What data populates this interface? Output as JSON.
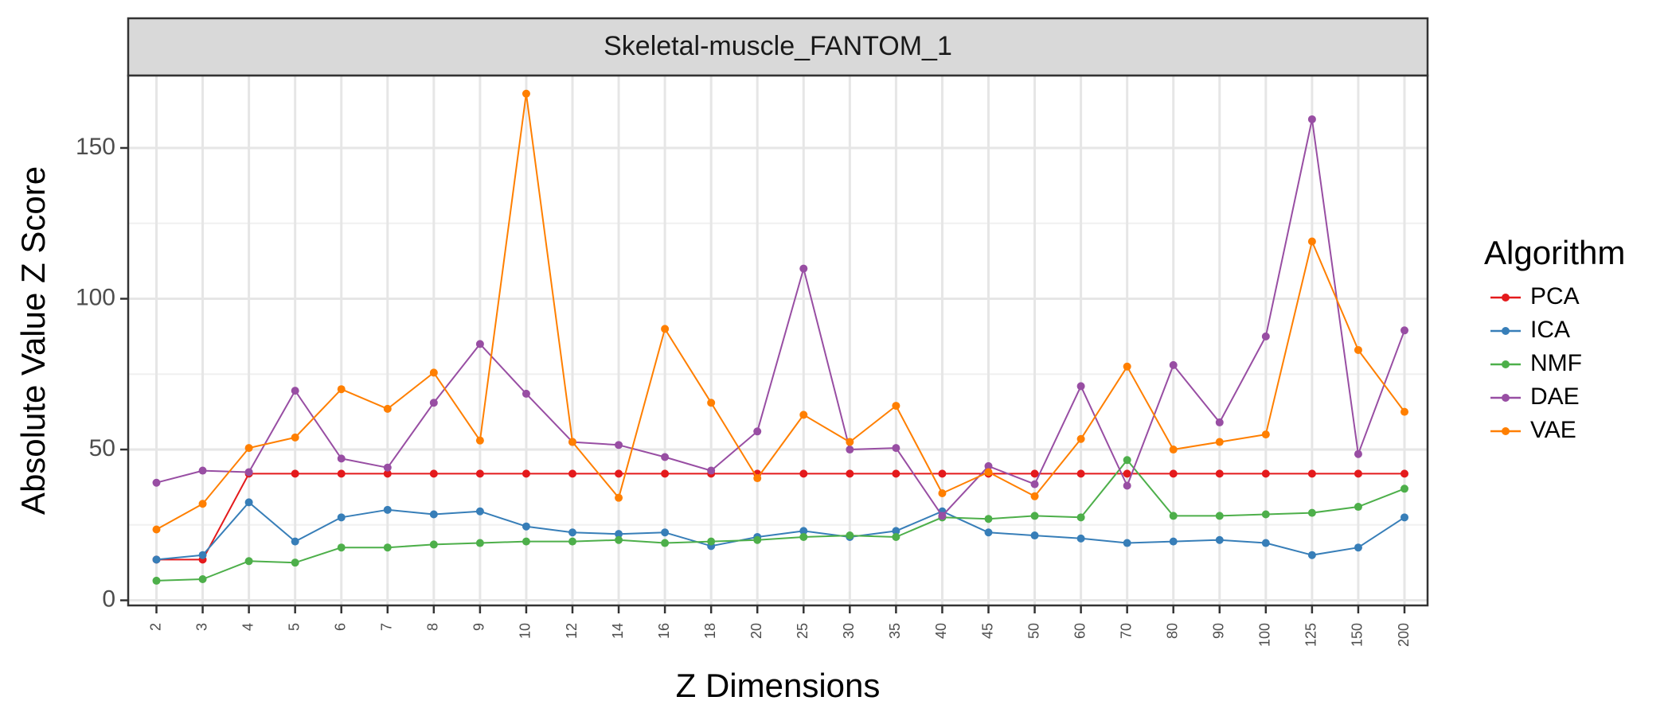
{
  "chart_data": {
    "type": "line",
    "facet_title": "Skeletal-muscle_FANTOM_1",
    "xlabel": "Z Dimensions",
    "ylabel": "Absolute Value Z Score",
    "legend_title": "Algorithm",
    "legend_position": "right",
    "ylim": [
      0,
      170
    ],
    "y_ticks": [
      0,
      50,
      100,
      150
    ],
    "grid": true,
    "categories": [
      "2",
      "3",
      "4",
      "5",
      "6",
      "7",
      "8",
      "9",
      "10",
      "12",
      "14",
      "16",
      "18",
      "20",
      "25",
      "30",
      "35",
      "40",
      "45",
      "50",
      "60",
      "70",
      "80",
      "90",
      "100",
      "125",
      "150",
      "200"
    ],
    "series": [
      {
        "name": "PCA",
        "color": "#e41a1c",
        "values": [
          13.5,
          13.5,
          42,
          42,
          42,
          42,
          42,
          42,
          42,
          42,
          42,
          42,
          42,
          42,
          42,
          42,
          42,
          42,
          42,
          42,
          42,
          42,
          42,
          42,
          42,
          42,
          42,
          42
        ]
      },
      {
        "name": "ICA",
        "color": "#377eb8",
        "values": [
          13.5,
          15,
          32.5,
          19.5,
          27.5,
          30,
          28.5,
          29.5,
          24.5,
          22.5,
          22,
          22.5,
          18,
          21,
          23,
          21,
          23,
          29.5,
          22.5,
          21.5,
          20.5,
          19,
          19.5,
          20,
          19,
          15,
          17.5,
          27.5
        ]
      },
      {
        "name": "NMF",
        "color": "#4daf4a",
        "values": [
          6.5,
          7,
          13,
          12.5,
          17.5,
          17.5,
          18.5,
          19,
          19.5,
          19.5,
          20,
          19,
          19.5,
          20,
          21,
          21.5,
          21,
          27.5,
          27,
          28,
          27.5,
          46.5,
          28,
          28,
          28.5,
          29,
          31,
          37
        ]
      },
      {
        "name": "DAE",
        "color": "#984ea3",
        "values": [
          39,
          43,
          42.5,
          69.5,
          47,
          44,
          65.5,
          85,
          68.5,
          52.5,
          51.5,
          47.5,
          43,
          56,
          110,
          50,
          50.5,
          28,
          44.5,
          38.5,
          71,
          38,
          78,
          59,
          87.5,
          159.5,
          48.5,
          89.5
        ]
      },
      {
        "name": "VAE",
        "color": "#ff7f00",
        "values": [
          23.5,
          32,
          50.5,
          54,
          70,
          63.5,
          75.5,
          53,
          168,
          52.5,
          34,
          90,
          65.5,
          40.5,
          61.5,
          52.5,
          64.5,
          35.5,
          42.5,
          34.5,
          53.5,
          77.5,
          50,
          52.5,
          55,
          119,
          83,
          62.5
        ]
      }
    ]
  }
}
